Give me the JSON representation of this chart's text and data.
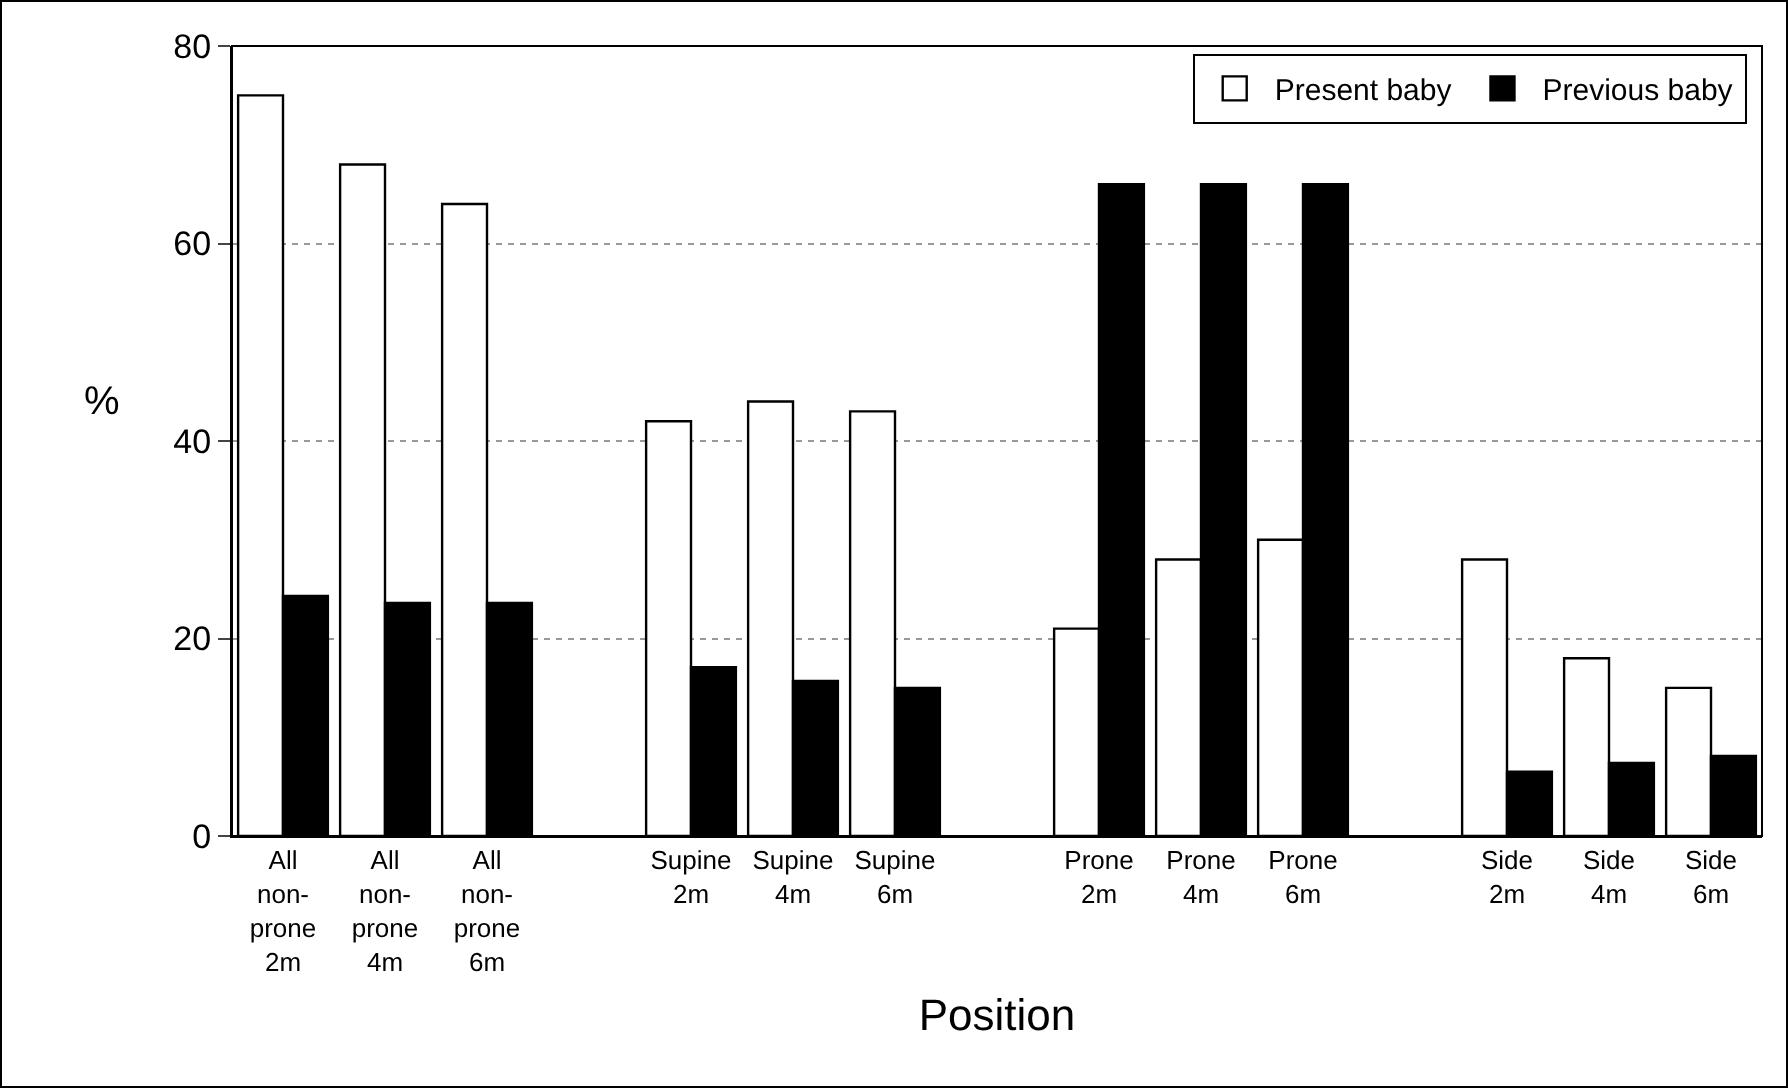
{
  "chart_data": {
    "type": "bar",
    "xlabel": "Position",
    "ylabel": "%",
    "categories": [
      "All\nnon-\nprone\n2m",
      "All\nnon-\nprone\n4m",
      "All\nnon-\nprone\n6m",
      null,
      "Supine\n2m",
      "Supine\n4m",
      "Supine\n6m",
      null,
      "Prone\n2m",
      "Prone\n4m",
      "Prone\n6m",
      null,
      "Side\n2m",
      "Side\n4m",
      "Side\n6m"
    ],
    "series": [
      {
        "name": "Present baby",
        "color": "#ffffff",
        "values": [
          75,
          68,
          64,
          null,
          42,
          44,
          43,
          null,
          21,
          28,
          30,
          null,
          28,
          18,
          15
        ]
      },
      {
        "name": "Previous baby",
        "color": "#000000",
        "values": [
          24.3,
          23.6,
          23.6,
          null,
          17.1,
          15.7,
          15,
          null,
          66,
          66,
          66,
          null,
          6.5,
          7.4,
          8.1
        ]
      }
    ],
    "ylim": [
      0,
      80
    ],
    "yticks": [
      0,
      20,
      40,
      60,
      80
    ],
    "grid": "y",
    "legend": "top right"
  }
}
